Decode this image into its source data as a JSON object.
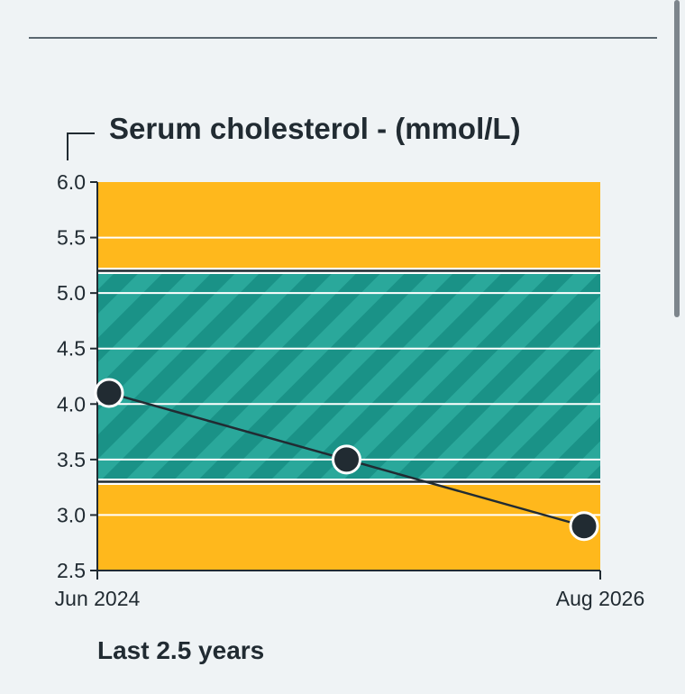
{
  "chart_data": {
    "type": "line",
    "title": "Serum cholesterol - (mmol/L)",
    "xlabel": "",
    "ylabel": "",
    "ylim": [
      2.5,
      6.0
    ],
    "yticks": [
      "6.0",
      "5.5",
      "5.0",
      "4.5",
      "4.0",
      "3.5",
      "3.0",
      "2.5"
    ],
    "x_tick_labels": [
      "Jun 2024",
      "Aug 2026"
    ],
    "grid": true,
    "reference_range": {
      "low": 3.3,
      "high": 5.2
    },
    "series": [
      {
        "points": [
          {
            "x": "2024-06",
            "y": 4.1
          },
          {
            "x": "2025-07",
            "y": 3.5
          },
          {
            "x": "2026-08",
            "y": 2.9
          }
        ]
      }
    ],
    "colors": {
      "out_of_range": "#ffb81c",
      "in_range": "#2aa89b",
      "in_range_stripe": "#1a9287",
      "line": "#212b32",
      "point_fill": "#212b32",
      "point_stroke": "#ffffff"
    }
  },
  "footer": {
    "period_label": "Last 2.5 years"
  }
}
